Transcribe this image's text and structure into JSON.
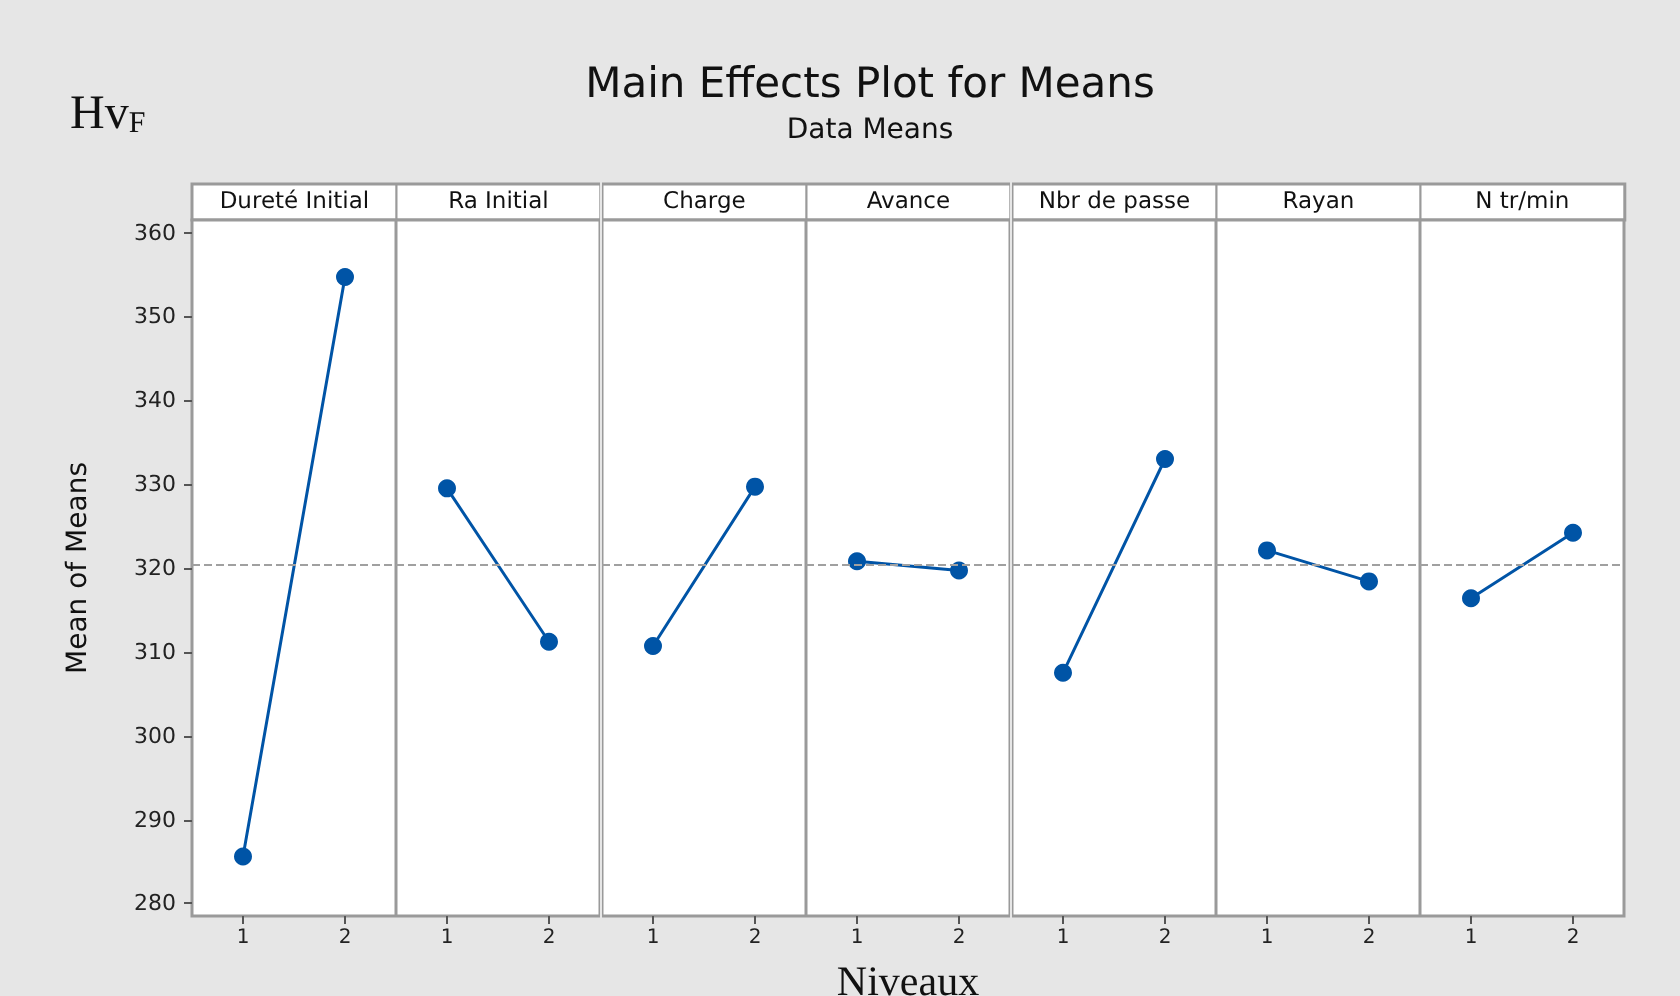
{
  "chart_data": [
    {
      "type": "other",
      "title": "Main Effects Plot for Means",
      "subtitle": "Data Means",
      "annotations": [
        "Hv$_{F}$"
      ]
    },
    {
      "type": "line",
      "title": "Dureté Initial",
      "ylabel": "Mean of Means",
      "categories": [
        "1",
        "2"
      ],
      "series": [
        {
          "color": "#0054a6",
          "values": [
            285.6,
            354.7
          ]
        }
      ],
      "ylim": [
        278.5,
        361.5
      ],
      "yticks": [
        280,
        290,
        300,
        310,
        320,
        330,
        340,
        350,
        360
      ],
      "ref_lines": [
        {
          "axis": "y",
          "value": 320.3,
          "color": "#a0a0a0",
          "line_style": "dashed"
        }
      ],
      "marker": "circle",
      "grid": false
    },
    {
      "type": "line",
      "title": "Ra Initial",
      "categories": [
        "1",
        "2"
      ],
      "series": [
        {
          "color": "#0054a6",
          "values": [
            329.5,
            311.2
          ]
        }
      ],
      "ylim": [
        278.5,
        361.5
      ],
      "tick_labels": "x",
      "ref_lines": [
        {
          "axis": "y",
          "value": 320.3,
          "color": "#a0a0a0",
          "line_style": "dashed"
        }
      ],
      "marker": "circle",
      "grid": false
    },
    {
      "type": "line",
      "title": "Charge",
      "categories": [
        "1",
        "2"
      ],
      "series": [
        {
          "color": "#0054a6",
          "values": [
            310.7,
            329.7
          ]
        }
      ],
      "ylim": [
        278.5,
        361.5
      ],
      "tick_labels": "x",
      "ref_lines": [
        {
          "axis": "y",
          "value": 320.3,
          "color": "#a0a0a0",
          "line_style": "dashed"
        }
      ],
      "marker": "circle",
      "grid": false
    },
    {
      "type": "line",
      "title": "Avance",
      "xlabel": "Niveaux",
      "categories": [
        "1",
        "2"
      ],
      "series": [
        {
          "color": "#0054a6",
          "values": [
            320.8,
            319.7
          ]
        }
      ],
      "ylim": [
        278.5,
        361.5
      ],
      "tick_labels": "x",
      "ref_lines": [
        {
          "axis": "y",
          "value": 320.3,
          "color": "#a0a0a0",
          "line_style": "dashed"
        }
      ],
      "marker": "circle",
      "grid": false
    },
    {
      "type": "line",
      "title": "Nbr de passe",
      "categories": [
        "1",
        "2"
      ],
      "series": [
        {
          "color": "#0054a6",
          "values": [
            307.5,
            333.0
          ]
        }
      ],
      "ylim": [
        278.5,
        361.5
      ],
      "tick_labels": "x",
      "ref_lines": [
        {
          "axis": "y",
          "value": 320.3,
          "color": "#a0a0a0",
          "line_style": "dashed"
        }
      ],
      "marker": "circle",
      "grid": false
    },
    {
      "type": "line",
      "title": "Rayan",
      "categories": [
        "1",
        "2"
      ],
      "series": [
        {
          "color": "#0054a6",
          "values": [
            322.1,
            318.4
          ]
        }
      ],
      "ylim": [
        278.5,
        361.5
      ],
      "tick_labels": "x",
      "ref_lines": [
        {
          "axis": "y",
          "value": 320.3,
          "color": "#a0a0a0",
          "line_style": "dashed"
        }
      ],
      "marker": "circle",
      "grid": false
    },
    {
      "type": "line",
      "title": "N tr/min",
      "categories": [
        "1",
        "2"
      ],
      "series": [
        {
          "color": "#0054a6",
          "values": [
            316.4,
            324.2
          ]
        }
      ],
      "ylim": [
        278.5,
        361.5
      ],
      "tick_labels": "x",
      "ref_lines": [
        {
          "axis": "y",
          "value": 320.3,
          "color": "#a0a0a0",
          "line_style": "dashed"
        }
      ],
      "marker": "circle",
      "grid": false
    }
  ]
}
